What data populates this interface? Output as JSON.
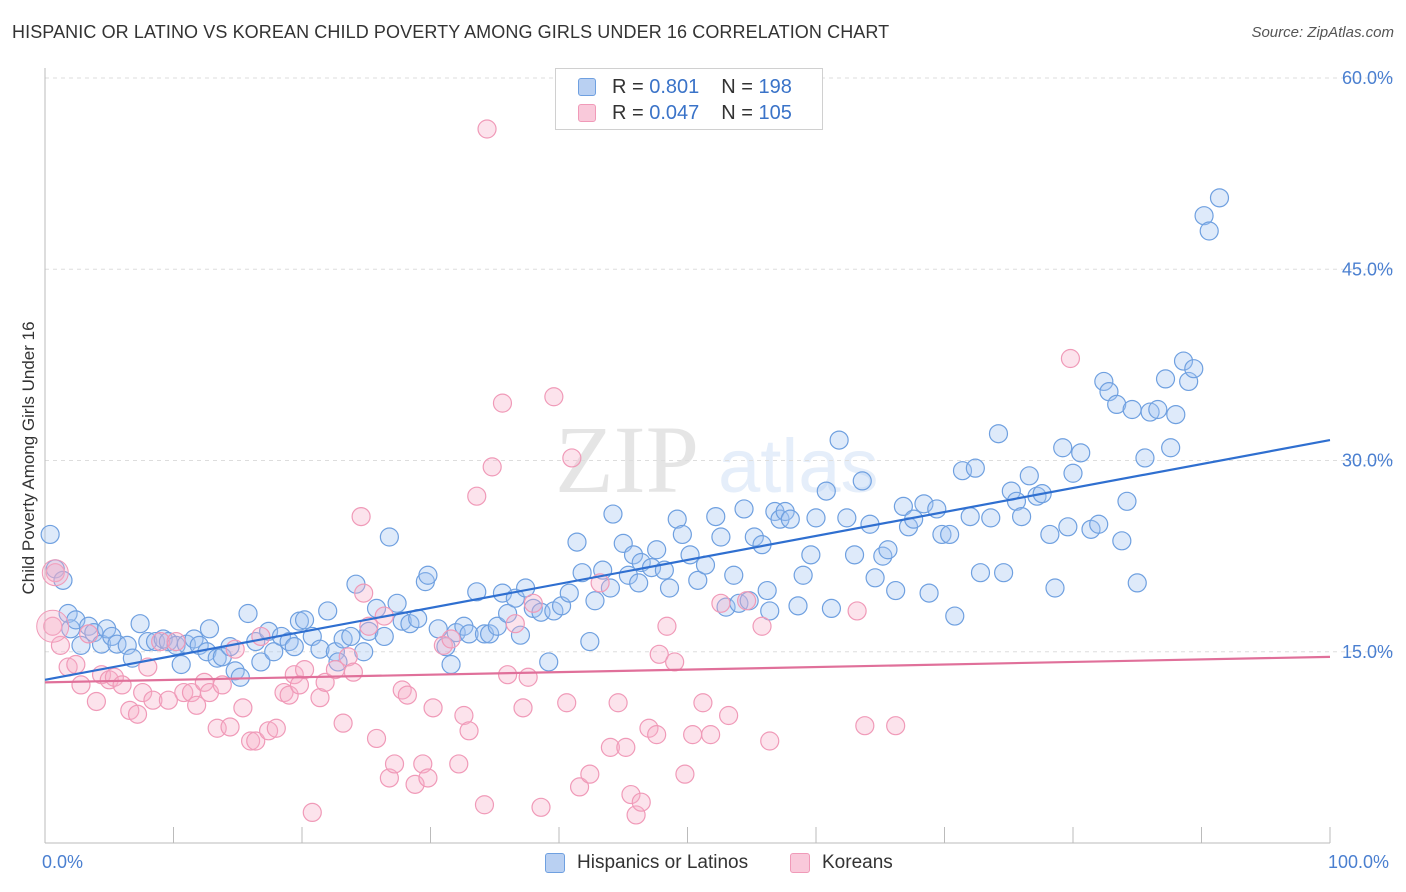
{
  "title": "HISPANIC OR LATINO VS KOREAN CHILD POVERTY AMONG GIRLS UNDER 16 CORRELATION CHART",
  "source": "Source: ZipAtlas.com",
  "watermark": {
    "zip": "ZIP",
    "atlas": "atlas"
  },
  "legend": {
    "r_label": "R =",
    "n_label": "N =",
    "rows": [
      {
        "r": "0.801",
        "n": "198",
        "color": "#6fa0e0",
        "fill": "#b9d0f2"
      },
      {
        "r": "0.047",
        "n": "105",
        "color": "#f09ab8",
        "fill": "#f9c9da"
      }
    ]
  },
  "bottom_legend": [
    {
      "label": "Hispanics or Latinos",
      "color": "#6fa0e0",
      "fill": "#b9d0f2"
    },
    {
      "label": "Koreans",
      "color": "#f09ab8",
      "fill": "#f9c9da"
    }
  ],
  "chart_data": {
    "type": "scatter",
    "title": "HISPANIC OR LATINO VS KOREAN CHILD POVERTY AMONG GIRLS UNDER 16 CORRELATION CHART",
    "xlabel": "",
    "ylabel": "Child Poverty Among Girls Under 16",
    "xlim": [
      0,
      100
    ],
    "ylim": [
      0,
      60
    ],
    "x_tick_labels": {
      "min": "0.0%",
      "max": "100.0%"
    },
    "y_ticks": [
      15,
      30,
      45,
      60
    ],
    "y_tick_labels": [
      "15.0%",
      "30.0%",
      "45.0%",
      "60.0%"
    ],
    "grid": "horizontal dashed",
    "legend_placement": "top-center",
    "series": [
      {
        "name": "Hispanics or Latinos",
        "stroke": "#6fa0e0",
        "fill": "rgba(160,195,240,0.35)",
        "trend": {
          "x": [
            0,
            100
          ],
          "y": [
            12.8,
            31.6
          ],
          "color": "#2f6fd0"
        },
        "points": [
          [
            0.4,
            24.2
          ],
          [
            0.8,
            21.5
          ],
          [
            1.4,
            20.6
          ],
          [
            1.8,
            18.0
          ],
          [
            2.0,
            16.8
          ],
          [
            2.4,
            17.5
          ],
          [
            2.8,
            15.5
          ],
          [
            3.4,
            17.0
          ],
          [
            3.8,
            16.5
          ],
          [
            4.4,
            15.6
          ],
          [
            4.8,
            16.8
          ],
          [
            5.2,
            16.2
          ],
          [
            5.6,
            15.6
          ],
          [
            6.4,
            15.5
          ],
          [
            6.8,
            14.5
          ],
          [
            7.4,
            17.2
          ],
          [
            8.0,
            15.8
          ],
          [
            8.6,
            15.8
          ],
          [
            9.2,
            16.0
          ],
          [
            9.6,
            15.8
          ],
          [
            10.2,
            15.5
          ],
          [
            10.6,
            14.0
          ],
          [
            11.0,
            15.6
          ],
          [
            11.6,
            16.0
          ],
          [
            12.0,
            15.5
          ],
          [
            12.6,
            15.0
          ],
          [
            12.8,
            16.8
          ],
          [
            13.4,
            14.5
          ],
          [
            13.8,
            14.6
          ],
          [
            14.4,
            15.4
          ],
          [
            14.8,
            13.5
          ],
          [
            15.2,
            13.0
          ],
          [
            15.8,
            18.0
          ],
          [
            16.4,
            15.8
          ],
          [
            16.8,
            14.2
          ],
          [
            17.4,
            16.6
          ],
          [
            17.8,
            15.0
          ],
          [
            18.4,
            16.2
          ],
          [
            19.0,
            15.8
          ],
          [
            19.4,
            15.4
          ],
          [
            19.8,
            17.4
          ],
          [
            20.2,
            17.5
          ],
          [
            20.8,
            16.2
          ],
          [
            21.4,
            15.2
          ],
          [
            22.0,
            18.2
          ],
          [
            22.6,
            15.0
          ],
          [
            22.8,
            14.2
          ],
          [
            23.2,
            16.0
          ],
          [
            23.8,
            16.2
          ],
          [
            24.2,
            20.3
          ],
          [
            24.8,
            15.0
          ],
          [
            25.2,
            16.6
          ],
          [
            25.8,
            18.4
          ],
          [
            26.4,
            16.2
          ],
          [
            26.8,
            24.0
          ],
          [
            27.4,
            18.8
          ],
          [
            27.8,
            17.4
          ],
          [
            28.4,
            17.2
          ],
          [
            29.0,
            17.6
          ],
          [
            29.6,
            20.5
          ],
          [
            29.8,
            21.0
          ],
          [
            30.6,
            16.8
          ],
          [
            31.2,
            15.4
          ],
          [
            31.6,
            14.0
          ],
          [
            32.0,
            16.5
          ],
          [
            32.6,
            17.0
          ],
          [
            33.0,
            16.4
          ],
          [
            33.6,
            19.7
          ],
          [
            34.2,
            16.4
          ],
          [
            34.6,
            16.4
          ],
          [
            35.2,
            17.0
          ],
          [
            35.6,
            19.6
          ],
          [
            36.0,
            18.0
          ],
          [
            36.6,
            19.2
          ],
          [
            37.0,
            16.3
          ],
          [
            37.4,
            20.0
          ],
          [
            38.0,
            18.4
          ],
          [
            38.6,
            18.1
          ],
          [
            39.2,
            14.2
          ],
          [
            39.6,
            18.2
          ],
          [
            40.2,
            18.6
          ],
          [
            40.8,
            19.6
          ],
          [
            41.4,
            23.6
          ],
          [
            41.8,
            21.2
          ],
          [
            42.4,
            15.8
          ],
          [
            42.8,
            19.0
          ],
          [
            43.4,
            21.4
          ],
          [
            44.0,
            20.0
          ],
          [
            44.2,
            25.8
          ],
          [
            45.0,
            23.5
          ],
          [
            45.4,
            21.0
          ],
          [
            45.8,
            22.6
          ],
          [
            46.2,
            20.4
          ],
          [
            46.4,
            22.0
          ],
          [
            47.2,
            21.6
          ],
          [
            47.6,
            23.0
          ],
          [
            48.2,
            21.4
          ],
          [
            48.6,
            20.0
          ],
          [
            49.2,
            25.4
          ],
          [
            49.6,
            24.2
          ],
          [
            50.2,
            22.6
          ],
          [
            50.8,
            20.6
          ],
          [
            51.4,
            21.8
          ],
          [
            52.2,
            25.6
          ],
          [
            52.6,
            24.0
          ],
          [
            53.0,
            18.5
          ],
          [
            53.6,
            21.0
          ],
          [
            54.0,
            18.8
          ],
          [
            54.4,
            26.2
          ],
          [
            54.8,
            19.0
          ],
          [
            55.2,
            24.0
          ],
          [
            55.8,
            23.4
          ],
          [
            56.2,
            19.8
          ],
          [
            56.4,
            18.2
          ],
          [
            56.8,
            26.0
          ],
          [
            57.2,
            25.4
          ],
          [
            57.6,
            26.0
          ],
          [
            58.0,
            25.4
          ],
          [
            58.6,
            18.6
          ],
          [
            59.0,
            21.0
          ],
          [
            59.6,
            22.6
          ],
          [
            60.0,
            25.5
          ],
          [
            60.8,
            27.6
          ],
          [
            61.2,
            18.4
          ],
          [
            61.8,
            31.6
          ],
          [
            62.4,
            25.5
          ],
          [
            63.0,
            22.6
          ],
          [
            63.6,
            28.4
          ],
          [
            64.2,
            25.0
          ],
          [
            64.6,
            20.8
          ],
          [
            65.2,
            22.5
          ],
          [
            65.6,
            23.0
          ],
          [
            66.2,
            19.8
          ],
          [
            66.8,
            26.4
          ],
          [
            67.2,
            24.8
          ],
          [
            67.6,
            25.4
          ],
          [
            68.4,
            26.6
          ],
          [
            68.8,
            19.6
          ],
          [
            69.4,
            26.2
          ],
          [
            69.8,
            24.2
          ],
          [
            70.4,
            24.2
          ],
          [
            70.8,
            17.8
          ],
          [
            71.4,
            29.2
          ],
          [
            72.0,
            25.6
          ],
          [
            72.4,
            29.4
          ],
          [
            72.8,
            21.2
          ],
          [
            73.6,
            25.5
          ],
          [
            74.2,
            32.1
          ],
          [
            74.6,
            21.2
          ],
          [
            75.2,
            27.6
          ],
          [
            75.6,
            26.8
          ],
          [
            76.0,
            25.6
          ],
          [
            76.6,
            28.8
          ],
          [
            77.2,
            27.2
          ],
          [
            77.6,
            27.4
          ],
          [
            78.2,
            24.2
          ],
          [
            78.6,
            20.0
          ],
          [
            79.2,
            31.0
          ],
          [
            79.6,
            24.8
          ],
          [
            80.0,
            29.0
          ],
          [
            80.6,
            30.6
          ],
          [
            81.4,
            24.6
          ],
          [
            82.0,
            25.0
          ],
          [
            82.4,
            36.2
          ],
          [
            82.8,
            35.4
          ],
          [
            83.4,
            34.4
          ],
          [
            83.8,
            23.7
          ],
          [
            84.2,
            26.8
          ],
          [
            84.6,
            34.0
          ],
          [
            85.0,
            20.4
          ],
          [
            85.6,
            30.2
          ],
          [
            86.0,
            33.8
          ],
          [
            86.6,
            34.0
          ],
          [
            87.2,
            36.4
          ],
          [
            87.6,
            31.0
          ],
          [
            88.0,
            33.6
          ],
          [
            88.6,
            37.8
          ],
          [
            89.0,
            36.2
          ],
          [
            89.4,
            37.2
          ],
          [
            90.2,
            49.2
          ],
          [
            90.6,
            48.0
          ],
          [
            91.4,
            50.6
          ]
        ]
      },
      {
        "name": "Koreans",
        "stroke": "#f09ab8",
        "fill": "rgba(245,175,200,0.35)",
        "trend": {
          "x": [
            0,
            100
          ],
          "y": [
            12.6,
            14.6
          ],
          "color": "#e0709a"
        },
        "points": [
          [
            0.8,
            21.2
          ],
          [
            0.6,
            17.0
          ],
          [
            1.2,
            15.5
          ],
          [
            1.8,
            13.8
          ],
          [
            2.4,
            14.0
          ],
          [
            2.8,
            12.4
          ],
          [
            3.4,
            16.4
          ],
          [
            4.0,
            11.1
          ],
          [
            4.4,
            13.2
          ],
          [
            5.0,
            12.8
          ],
          [
            5.4,
            13.0
          ],
          [
            6.0,
            12.4
          ],
          [
            6.6,
            10.4
          ],
          [
            7.2,
            10.1
          ],
          [
            7.6,
            11.8
          ],
          [
            8.0,
            13.8
          ],
          [
            8.4,
            11.2
          ],
          [
            9.0,
            15.8
          ],
          [
            9.6,
            11.2
          ],
          [
            10.2,
            15.8
          ],
          [
            10.8,
            11.8
          ],
          [
            11.4,
            11.8
          ],
          [
            11.8,
            10.8
          ],
          [
            12.4,
            12.6
          ],
          [
            12.8,
            11.8
          ],
          [
            13.4,
            9.0
          ],
          [
            13.8,
            12.4
          ],
          [
            14.4,
            9.1
          ],
          [
            14.8,
            15.2
          ],
          [
            15.4,
            10.6
          ],
          [
            16.0,
            8.0
          ],
          [
            16.4,
            8.0
          ],
          [
            16.8,
            16.2
          ],
          [
            17.4,
            8.8
          ],
          [
            18.0,
            9.0
          ],
          [
            18.6,
            11.8
          ],
          [
            19.0,
            11.6
          ],
          [
            19.4,
            13.2
          ],
          [
            19.8,
            12.4
          ],
          [
            20.2,
            13.6
          ],
          [
            20.8,
            2.4
          ],
          [
            21.4,
            11.4
          ],
          [
            21.8,
            12.6
          ],
          [
            22.6,
            13.6
          ],
          [
            23.2,
            9.4
          ],
          [
            23.6,
            14.6
          ],
          [
            24.0,
            13.4
          ],
          [
            24.6,
            25.6
          ],
          [
            24.8,
            19.6
          ],
          [
            25.2,
            17.0
          ],
          [
            25.8,
            8.2
          ],
          [
            26.4,
            17.8
          ],
          [
            26.8,
            5.1
          ],
          [
            27.2,
            6.2
          ],
          [
            27.8,
            12.0
          ],
          [
            28.2,
            11.6
          ],
          [
            28.8,
            4.6
          ],
          [
            29.4,
            6.2
          ],
          [
            29.8,
            5.1
          ],
          [
            30.2,
            10.6
          ],
          [
            31.0,
            15.5
          ],
          [
            31.6,
            16.0
          ],
          [
            32.2,
            6.2
          ],
          [
            32.6,
            10.0
          ],
          [
            33.0,
            8.8
          ],
          [
            33.6,
            27.2
          ],
          [
            34.2,
            3.0
          ],
          [
            34.4,
            56.0
          ],
          [
            34.8,
            29.5
          ],
          [
            35.6,
            34.5
          ],
          [
            36.0,
            13.2
          ],
          [
            36.6,
            17.2
          ],
          [
            37.2,
            10.6
          ],
          [
            37.6,
            13.0
          ],
          [
            38.0,
            18.8
          ],
          [
            38.6,
            2.8
          ],
          [
            39.6,
            35.0
          ],
          [
            40.6,
            11.0
          ],
          [
            41.0,
            30.2
          ],
          [
            41.6,
            4.4
          ],
          [
            42.4,
            5.4
          ],
          [
            43.2,
            20.4
          ],
          [
            44.0,
            7.5
          ],
          [
            44.6,
            11.0
          ],
          [
            45.2,
            7.5
          ],
          [
            45.6,
            3.8
          ],
          [
            46.0,
            2.2
          ],
          [
            46.4,
            3.2
          ],
          [
            47.0,
            9.0
          ],
          [
            47.6,
            8.5
          ],
          [
            47.8,
            14.8
          ],
          [
            48.4,
            17.0
          ],
          [
            49.0,
            14.2
          ],
          [
            49.8,
            5.4
          ],
          [
            50.4,
            8.5
          ],
          [
            51.2,
            11.0
          ],
          [
            51.8,
            8.5
          ],
          [
            52.6,
            18.8
          ],
          [
            53.2,
            10.0
          ],
          [
            54.6,
            19.0
          ],
          [
            55.8,
            17.0
          ],
          [
            56.4,
            8.0
          ],
          [
            63.2,
            18.2
          ],
          [
            63.8,
            9.2
          ],
          [
            66.2,
            9.2
          ],
          [
            79.8,
            38.0
          ]
        ]
      }
    ]
  }
}
